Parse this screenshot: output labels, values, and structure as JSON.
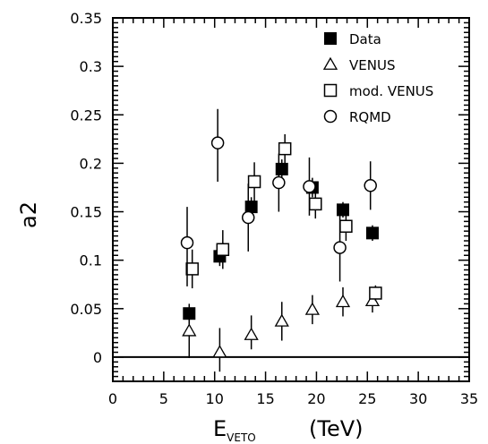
{
  "chart_data": {
    "type": "scatter",
    "xlabel_main": "E",
    "xlabel_sub": "VETO",
    "xlabel_unit": "(TeV)",
    "ylabel": "a2",
    "xlim": [
      0,
      35
    ],
    "ylim": [
      -0.025,
      0.35
    ],
    "x_ticks": [
      0,
      5,
      10,
      15,
      20,
      25,
      30,
      35
    ],
    "y_ticks": [
      0,
      0.05,
      0.1,
      0.15,
      0.2,
      0.25,
      0.3,
      0.35
    ],
    "x_tick_labels": [
      "0",
      "5",
      "10",
      "15",
      "20",
      "25",
      "30",
      "35"
    ],
    "y_tick_labels": [
      "0",
      "0.05",
      "0.1",
      "0.15",
      "0.2",
      "0.25",
      "0.3",
      "0.35"
    ],
    "zero_line": 0,
    "legend_position": "top-right",
    "series": [
      {
        "name": "Data",
        "marker": "filled-square",
        "points": [
          {
            "x": 7.5,
            "y": 0.045,
            "err_lo": 0.01,
            "err_hi": 0.01
          },
          {
            "x": 10.5,
            "y": 0.104,
            "err_lo": 0.01,
            "err_hi": 0.008
          },
          {
            "x": 13.6,
            "y": 0.155,
            "err_lo": 0.01,
            "err_hi": 0.01
          },
          {
            "x": 16.6,
            "y": 0.194,
            "err_lo": 0.01,
            "err_hi": 0.01
          },
          {
            "x": 19.6,
            "y": 0.175,
            "err_lo": 0.01,
            "err_hi": 0.01
          },
          {
            "x": 22.6,
            "y": 0.152,
            "err_lo": 0.008,
            "err_hi": 0.008
          },
          {
            "x": 25.5,
            "y": 0.128,
            "err_lo": 0.008,
            "err_hi": 0.008
          }
        ]
      },
      {
        "name": "VENUS",
        "marker": "open-triangle",
        "points": [
          {
            "x": 7.5,
            "y": 0.027,
            "err_lo": 0.028,
            "err_hi": 0.015
          },
          {
            "x": 10.5,
            "y": 0.005,
            "err_lo": 0.02,
            "err_hi": 0.025
          },
          {
            "x": 13.6,
            "y": 0.023,
            "err_lo": 0.015,
            "err_hi": 0.02
          },
          {
            "x": 16.6,
            "y": 0.037,
            "err_lo": 0.02,
            "err_hi": 0.02
          },
          {
            "x": 19.6,
            "y": 0.049,
            "err_lo": 0.015,
            "err_hi": 0.015
          },
          {
            "x": 22.6,
            "y": 0.057,
            "err_lo": 0.015,
            "err_hi": 0.015
          },
          {
            "x": 25.5,
            "y": 0.058,
            "err_lo": 0.012,
            "err_hi": 0.012
          }
        ]
      },
      {
        "name": "mod. VENUS",
        "marker": "open-square",
        "points": [
          {
            "x": 7.8,
            "y": 0.091,
            "err_lo": 0.02,
            "err_hi": 0.02
          },
          {
            "x": 10.8,
            "y": 0.111,
            "err_lo": 0.02,
            "err_hi": 0.02
          },
          {
            "x": 13.9,
            "y": 0.181,
            "err_lo": 0.02,
            "err_hi": 0.02
          },
          {
            "x": 16.9,
            "y": 0.215,
            "err_lo": 0.015,
            "err_hi": 0.015
          },
          {
            "x": 19.9,
            "y": 0.158,
            "err_lo": 0.015,
            "err_hi": 0.015
          },
          {
            "x": 22.9,
            "y": 0.135,
            "err_lo": 0.015,
            "err_hi": 0.015
          },
          {
            "x": 25.8,
            "y": 0.066,
            "err_lo": 0.008,
            "err_hi": 0.008
          }
        ]
      },
      {
        "name": "RQMD",
        "marker": "open-circle",
        "points": [
          {
            "x": 7.3,
            "y": 0.118,
            "err_lo": 0.045,
            "err_hi": 0.037
          },
          {
            "x": 10.3,
            "y": 0.221,
            "err_lo": 0.04,
            "err_hi": 0.035
          },
          {
            "x": 13.3,
            "y": 0.144,
            "err_lo": 0.035,
            "err_hi": 0.035
          },
          {
            "x": 16.3,
            "y": 0.18,
            "err_lo": 0.03,
            "err_hi": 0.03
          },
          {
            "x": 19.3,
            "y": 0.176,
            "err_lo": 0.03,
            "err_hi": 0.03
          },
          {
            "x": 22.3,
            "y": 0.113,
            "err_lo": 0.035,
            "err_hi": 0.035
          },
          {
            "x": 25.3,
            "y": 0.177,
            "err_lo": 0.025,
            "err_hi": 0.025
          }
        ]
      }
    ]
  }
}
